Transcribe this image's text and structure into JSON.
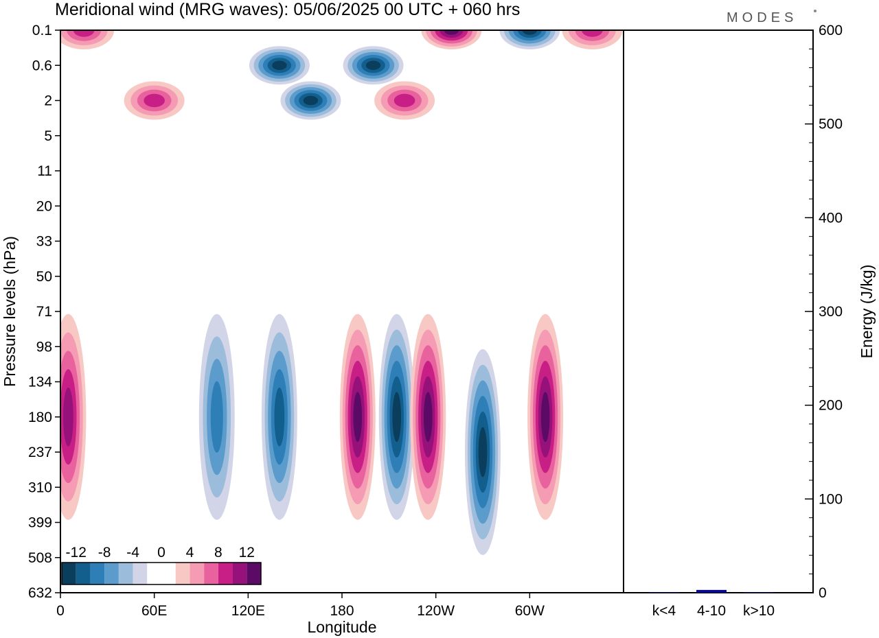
{
  "brand": "MODES",
  "chart_data": [
    {
      "type": "heatmap",
      "title": "Meridional wind (MRG waves):  05/06/2025  00 UTC  + 060 hrs",
      "xlabel": "Longitude",
      "ylabel": "Pressure levels (hPa)",
      "x_ticks": [
        "0",
        "60E",
        "120E",
        "180",
        "120W",
        "60W"
      ],
      "x_tick_degrees": [
        0,
        60,
        120,
        180,
        240,
        300
      ],
      "xlim": [
        0,
        360
      ],
      "y_ticks": [
        "0.1",
        "0.6",
        "2",
        "5",
        "11",
        "20",
        "33",
        "50",
        "71",
        "98",
        "134",
        "180",
        "237",
        "310",
        "399",
        "508",
        "632"
      ],
      "y_scale": "pressure levels (top 0.1 hPa, bottom 632 hPa)",
      "colorbar": {
        "labels": [
          "-12",
          "-8",
          "-4",
          "0",
          "4",
          "8",
          "12"
        ],
        "colors": [
          "#0b3d5c",
          "#125f8e",
          "#2e7fb8",
          "#5b9ccc",
          "#9cbcdc",
          "#d2d5e8",
          "#ffffff",
          "#ffffff",
          "#f8c8c4",
          "#f59bb3",
          "#e8639e",
          "#c71f86",
          "#96117a",
          "#5b0a66"
        ]
      },
      "features": [
        {
          "lon": 140,
          "level": 0.6,
          "value": -14
        },
        {
          "lon": 160,
          "level": 2,
          "value": -12
        },
        {
          "lon": 200,
          "level": 0.6,
          "value": -12
        },
        {
          "lon": 250,
          "level": 0.1,
          "value": 14
        },
        {
          "lon": 300,
          "level": 0.1,
          "value": -12
        },
        {
          "lon": 15,
          "level": 0.1,
          "value": 8
        },
        {
          "lon": 340,
          "level": 0.1,
          "value": 8
        },
        {
          "lon": 60,
          "level": 2,
          "value": 8
        },
        {
          "lon": 220,
          "level": 2,
          "value": 8
        },
        {
          "lon": 190,
          "level": 180,
          "value": 14
        },
        {
          "lon": 215,
          "level": 180,
          "value": -14
        },
        {
          "lon": 235,
          "level": 180,
          "value": 12
        },
        {
          "lon": 270,
          "level": 237,
          "value": -12
        },
        {
          "lon": 310,
          "level": 180,
          "value": 12
        },
        {
          "lon": 5,
          "level": 180,
          "value": 10
        },
        {
          "lon": 100,
          "level": 180,
          "value": -8
        },
        {
          "lon": 140,
          "level": 180,
          "value": -10
        }
      ]
    },
    {
      "type": "bar",
      "ylabel": "Energy (J/kg)",
      "categories": [
        "k<4",
        "4-10",
        "k>10"
      ],
      "values": [
        0.5,
        3,
        0.5
      ],
      "ylim": [
        0,
        600
      ],
      "y_ticks": [
        0,
        100,
        200,
        300,
        400,
        500,
        600
      ],
      "bar_color": "#0a0a8c"
    }
  ]
}
